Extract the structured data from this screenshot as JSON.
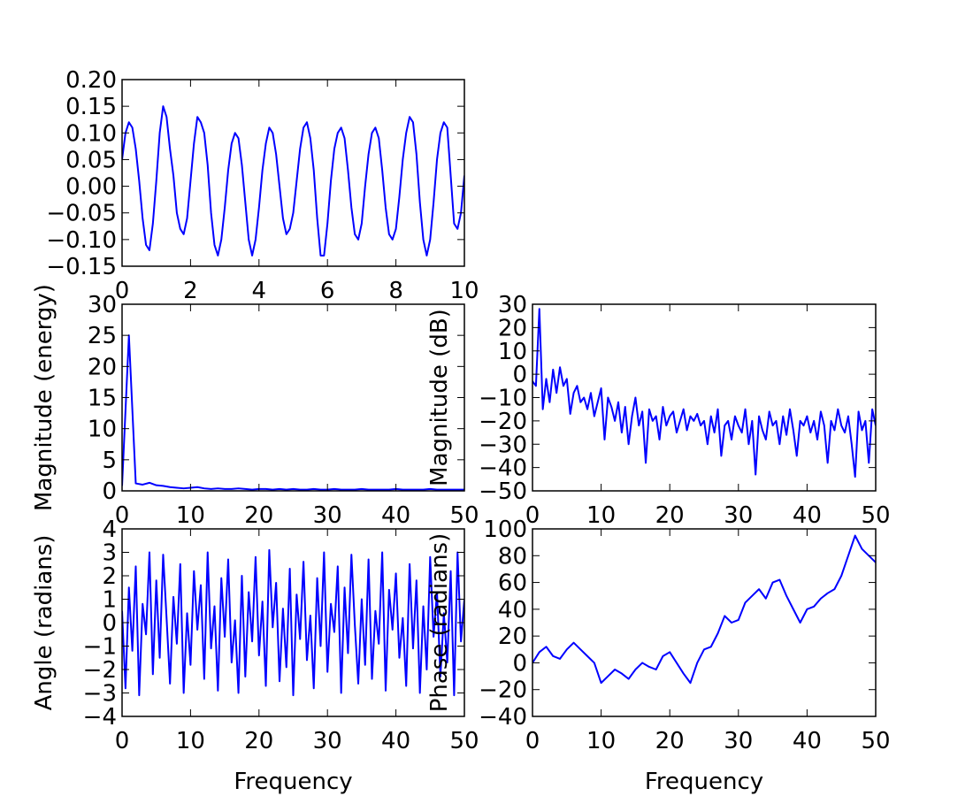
{
  "chart_data": [
    {
      "type": "line",
      "color": "#0000ff",
      "x": [
        0,
        0.1,
        0.2,
        0.3,
        0.4,
        0.5,
        0.6,
        0.7,
        0.8,
        0.9,
        1,
        1.1,
        1.2,
        1.3,
        1.4,
        1.5,
        1.6,
        1.7,
        1.8,
        1.9,
        2,
        2.1,
        2.2,
        2.3,
        2.4,
        2.5,
        2.6,
        2.7,
        2.8,
        2.9,
        3,
        3.1,
        3.2,
        3.3,
        3.4,
        3.5,
        3.6,
        3.7,
        3.8,
        3.9,
        4,
        4.1,
        4.2,
        4.3,
        4.4,
        4.5,
        4.6,
        4.7,
        4.8,
        4.9,
        5,
        5.1,
        5.2,
        5.3,
        5.4,
        5.5,
        5.6,
        5.7,
        5.8,
        5.9,
        6,
        6.1,
        6.2,
        6.3,
        6.4,
        6.5,
        6.6,
        6.7,
        6.8,
        6.9,
        7,
        7.1,
        7.2,
        7.3,
        7.4,
        7.5,
        7.6,
        7.7,
        7.8,
        7.9,
        8,
        8.1,
        8.2,
        8.3,
        8.4,
        8.5,
        8.6,
        8.7,
        8.8,
        8.9,
        9,
        9.1,
        9.2,
        9.3,
        9.4,
        9.5,
        9.6,
        9.7,
        9.8,
        9.9,
        10
      ],
      "values": [
        0.05,
        0.1,
        0.12,
        0.11,
        0.07,
        0.01,
        -0.06,
        -0.11,
        -0.12,
        -0.07,
        0.01,
        0.1,
        0.15,
        0.13,
        0.07,
        0.02,
        -0.05,
        -0.08,
        -0.09,
        -0.06,
        0.01,
        0.08,
        0.13,
        0.12,
        0.1,
        0.04,
        -0.05,
        -0.11,
        -0.13,
        -0.1,
        -0.04,
        0.03,
        0.08,
        0.1,
        0.09,
        0.04,
        -0.03,
        -0.1,
        -0.13,
        -0.1,
        -0.04,
        0.03,
        0.08,
        0.11,
        0.1,
        0.06,
        0.0,
        -0.06,
        -0.09,
        -0.08,
        -0.05,
        0.01,
        0.07,
        0.11,
        0.12,
        0.09,
        0.03,
        -0.06,
        -0.13,
        -0.13,
        -0.07,
        0.01,
        0.07,
        0.1,
        0.11,
        0.09,
        0.03,
        -0.04,
        -0.09,
        -0.1,
        -0.07,
        0.0,
        0.06,
        0.1,
        0.11,
        0.09,
        0.03,
        -0.04,
        -0.09,
        -0.1,
        -0.08,
        -0.02,
        0.05,
        0.1,
        0.13,
        0.12,
        0.06,
        -0.03,
        -0.1,
        -0.13,
        -0.1,
        -0.03,
        0.05,
        0.1,
        0.12,
        0.11,
        0.02,
        -0.07,
        -0.08,
        -0.05,
        0.02
      ],
      "xlim": [
        0,
        10
      ],
      "ylim": [
        -0.15,
        0.2
      ],
      "xticks": [
        0,
        2,
        4,
        6,
        8,
        10
      ],
      "yticks": [
        {
          "value": -0.15,
          "label": "−0.15"
        },
        {
          "value": -0.1,
          "label": "−0.10"
        },
        {
          "value": -0.05,
          "label": "−0.05"
        },
        {
          "value": 0,
          "label": "0.00"
        },
        {
          "value": 0.05,
          "label": "0.05"
        },
        {
          "value": 0.1,
          "label": "0.10"
        },
        {
          "value": 0.15,
          "label": "0.15"
        },
        {
          "value": 0.2,
          "label": "0.20"
        }
      ]
    },
    {
      "type": "line",
      "color": "#0000ff",
      "ylabel": "Magnitude (energy)",
      "x": [
        0,
        1,
        2,
        3,
        4,
        5,
        6,
        7,
        8,
        9,
        10,
        11,
        12,
        13,
        14,
        15,
        16,
        17,
        18,
        19,
        20,
        21,
        22,
        23,
        24,
        25,
        26,
        27,
        28,
        29,
        30,
        31,
        32,
        33,
        34,
        35,
        36,
        37,
        38,
        39,
        40,
        41,
        42,
        43,
        44,
        45,
        46,
        47,
        48,
        49,
        50
      ],
      "values": [
        0.8,
        25,
        1.2,
        1.0,
        1.3,
        0.9,
        0.8,
        0.6,
        0.5,
        0.4,
        0.5,
        0.6,
        0.4,
        0.3,
        0.4,
        0.3,
        0.3,
        0.4,
        0.3,
        0.2,
        0.3,
        0.3,
        0.2,
        0.3,
        0.2,
        0.3,
        0.2,
        0.2,
        0.3,
        0.2,
        0.2,
        0.3,
        0.2,
        0.2,
        0.2,
        0.3,
        0.2,
        0.2,
        0.2,
        0.2,
        0.3,
        0.2,
        0.2,
        0.2,
        0.2,
        0.3,
        0.2,
        0.2,
        0.2,
        0.2,
        0.2
      ],
      "xlim": [
        0,
        50
      ],
      "ylim": [
        0,
        30
      ],
      "xticks": [
        0,
        10,
        20,
        30,
        40,
        50
      ],
      "yticks": [
        0,
        5,
        10,
        15,
        20,
        25,
        30
      ]
    },
    {
      "type": "line",
      "color": "#0000ff",
      "ylabel": "Magnitude (dB)",
      "x": [
        0,
        0.5,
        1,
        1.5,
        2,
        2.5,
        3,
        3.5,
        4,
        4.5,
        5,
        5.5,
        6,
        6.5,
        7,
        7.5,
        8,
        8.5,
        9,
        9.5,
        10,
        10.5,
        11,
        11.5,
        12,
        12.5,
        13,
        13.5,
        14,
        14.5,
        15,
        15.5,
        16,
        16.5,
        17,
        17.5,
        18,
        18.5,
        19,
        19.5,
        20,
        20.5,
        21,
        21.5,
        22,
        22.5,
        23,
        23.5,
        24,
        24.5,
        25,
        25.5,
        26,
        26.5,
        27,
        27.5,
        28,
        28.5,
        29,
        29.5,
        30,
        30.5,
        31,
        31.5,
        32,
        32.5,
        33,
        33.5,
        34,
        34.5,
        35,
        35.5,
        36,
        36.5,
        37,
        37.5,
        38,
        38.5,
        39,
        39.5,
        40,
        40.5,
        41,
        41.5,
        42,
        42.5,
        43,
        43.5,
        44,
        44.5,
        45,
        45.5,
        46,
        46.5,
        47,
        47.5,
        48,
        48.5,
        49,
        49.5,
        50
      ],
      "values": [
        -3,
        -5,
        28,
        -15,
        -2,
        -12,
        2,
        -8,
        3,
        -5,
        -2,
        -17,
        -8,
        -5,
        -12,
        -10,
        -15,
        -8,
        -18,
        -12,
        -6,
        -28,
        -10,
        -14,
        -20,
        -12,
        -25,
        -14,
        -30,
        -18,
        -10,
        -22,
        -16,
        -38,
        -15,
        -20,
        -18,
        -28,
        -14,
        -22,
        -18,
        -16,
        -25,
        -20,
        -15,
        -24,
        -18,
        -20,
        -17,
        -22,
        -20,
        -30,
        -18,
        -25,
        -15,
        -35,
        -22,
        -20,
        -28,
        -18,
        -22,
        -25,
        -15,
        -30,
        -20,
        -43,
        -18,
        -24,
        -28,
        -16,
        -22,
        -20,
        -30,
        -18,
        -26,
        -15,
        -24,
        -35,
        -20,
        -22,
        -18,
        -25,
        -20,
        -28,
        -16,
        -22,
        -38,
        -20,
        -24,
        -15,
        -22,
        -25,
        -18,
        -30,
        -44,
        -16,
        -24,
        -20,
        -38,
        -15,
        -22
      ],
      "xlim": [
        0,
        50
      ],
      "ylim": [
        -50,
        30
      ],
      "xticks": [
        0,
        10,
        20,
        30,
        40,
        50
      ],
      "yticks": [
        {
          "value": -50,
          "label": "−50"
        },
        {
          "value": -40,
          "label": "−40"
        },
        {
          "value": -30,
          "label": "−30"
        },
        {
          "value": -20,
          "label": "−20"
        },
        {
          "value": -10,
          "label": "−10"
        },
        0,
        10,
        20,
        30
      ]
    },
    {
      "type": "line",
      "color": "#0000ff",
      "xlabel": "Frequency",
      "ylabel": "Angle (radians)",
      "x": [
        0,
        0.5,
        1,
        1.5,
        2,
        2.5,
        3,
        3.5,
        4,
        4.5,
        5,
        5.5,
        6,
        6.5,
        7,
        7.5,
        8,
        8.5,
        9,
        9.5,
        10,
        10.5,
        11,
        11.5,
        12,
        12.5,
        13,
        13.5,
        14,
        14.5,
        15,
        15.5,
        16,
        16.5,
        17,
        17.5,
        18,
        18.5,
        19,
        19.5,
        20,
        20.5,
        21,
        21.5,
        22,
        22.5,
        23,
        23.5,
        24,
        24.5,
        25,
        25.5,
        26,
        26.5,
        27,
        27.5,
        28,
        28.5,
        29,
        29.5,
        30,
        30.5,
        31,
        31.5,
        32,
        32.5,
        33,
        33.5,
        34,
        34.5,
        35,
        35.5,
        36,
        36.5,
        37,
        37.5,
        38,
        38.5,
        39,
        39.5,
        40,
        40.5,
        41,
        41.5,
        42,
        42.5,
        43,
        43.5,
        44,
        44.5,
        45,
        45.5,
        46,
        46.5,
        47,
        47.5,
        48,
        48.5,
        49,
        49.5,
        50
      ],
      "values": [
        0.5,
        -2.8,
        1.5,
        -1.2,
        2.4,
        -3.1,
        0.8,
        -0.5,
        3.0,
        -2.2,
        1.8,
        -1.5,
        2.9,
        0.2,
        -2.6,
        1.1,
        -0.9,
        2.5,
        -3.0,
        0.4,
        -1.8,
        2.2,
        -0.3,
        1.6,
        -2.4,
        3.0,
        -1.1,
        0.7,
        -2.9,
        1.9,
        -0.6,
        2.7,
        -1.7,
        0.1,
        -3.0,
        2.0,
        -2.3,
        1.3,
        -0.8,
        2.8,
        -1.4,
        0.9,
        -2.7,
        3.1,
        -0.2,
        1.7,
        -2.5,
        0.6,
        -1.9,
        2.3,
        -3.1,
        1.2,
        -0.7,
        2.6,
        -1.6,
        0.3,
        -2.8,
        1.9,
        -1.0,
        3.0,
        -2.1,
        0.8,
        -0.4,
        2.4,
        -3.0,
        1.5,
        -1.3,
        2.9,
        -0.1,
        -2.6,
        1.0,
        -1.8,
        2.7,
        -2.4,
        0.5,
        -0.9,
        3.0,
        -2.9,
        1.4,
        -0.3,
        2.1,
        -1.5,
        0.2,
        -2.7,
        2.5,
        -1.1,
        1.8,
        -3.0,
        0.7,
        -2.0,
        2.8,
        -0.6,
        1.3,
        -2.3,
        0.4,
        -1.7,
        2.2,
        -3.1,
        3.0,
        -0.8,
        1.0
      ],
      "xlim": [
        0,
        50
      ],
      "ylim": [
        -4,
        4
      ],
      "xticks": [
        0,
        10,
        20,
        30,
        40,
        50
      ],
      "yticks": [
        {
          "value": -4,
          "label": "−4"
        },
        {
          "value": -3,
          "label": "−3"
        },
        {
          "value": -2,
          "label": "−2"
        },
        {
          "value": -1,
          "label": "−1"
        },
        0,
        1,
        2,
        3,
        4
      ]
    },
    {
      "type": "line",
      "color": "#0000ff",
      "xlabel": "Frequency",
      "ylabel": "Phase (radians)",
      "x": [
        0,
        1,
        2,
        3,
        4,
        5,
        6,
        7,
        8,
        9,
        10,
        11,
        12,
        13,
        14,
        15,
        16,
        17,
        18,
        19,
        20,
        21,
        22,
        23,
        24,
        25,
        26,
        27,
        28,
        29,
        30,
        31,
        32,
        33,
        34,
        35,
        36,
        37,
        38,
        39,
        40,
        41,
        42,
        43,
        44,
        45,
        46,
        47,
        48,
        49,
        50
      ],
      "values": [
        0,
        8,
        12,
        5,
        3,
        10,
        15,
        10,
        5,
        0,
        -15,
        -10,
        -5,
        -8,
        -12,
        -5,
        0,
        -3,
        -5,
        5,
        8,
        0,
        -8,
        -15,
        0,
        10,
        12,
        22,
        35,
        30,
        32,
        45,
        50,
        55,
        48,
        60,
        62,
        50,
        40,
        30,
        40,
        42,
        48,
        52,
        55,
        65,
        80,
        95,
        85,
        80,
        75
      ],
      "xlim": [
        0,
        50
      ],
      "ylim": [
        -40,
        100
      ],
      "xticks": [
        0,
        10,
        20,
        30,
        40,
        50
      ],
      "yticks": [
        {
          "value": -40,
          "label": "−40"
        },
        {
          "value": -20,
          "label": "−20"
        },
        0,
        20,
        40,
        60,
        80,
        100
      ]
    }
  ]
}
